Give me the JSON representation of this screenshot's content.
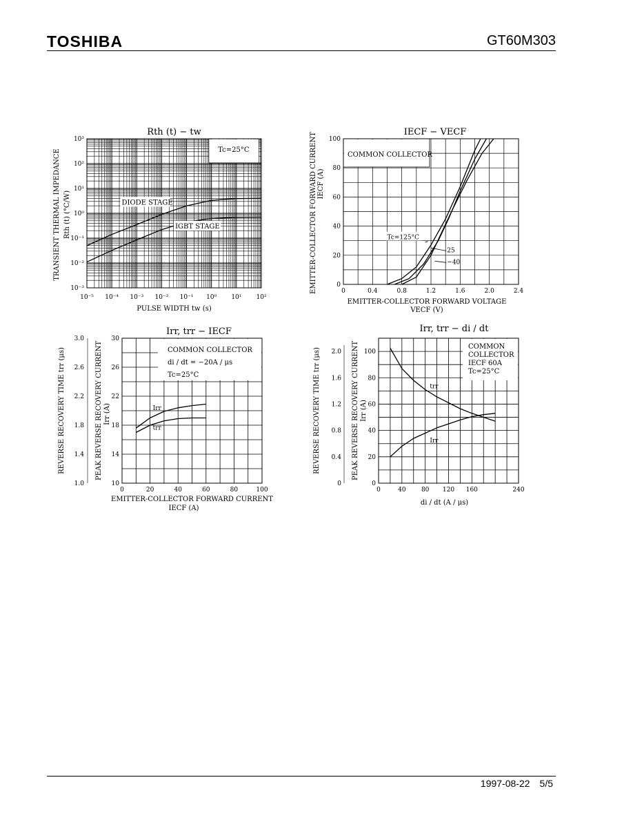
{
  "header": {
    "brand": "TOSHIBA",
    "part_number": "GT60M303"
  },
  "footer": {
    "date": "1997-08-22",
    "page": "5/5"
  },
  "chart_data": [
    {
      "type": "line",
      "id": "rth",
      "title": "Rth (t) − tw",
      "xlabel": "PULSE WIDTH  tw  (s)",
      "ylabel": "TRANSIENT THERMAL IMPEDANCE",
      "ylabel2": "Rth (t)  (°C/W)",
      "xscale": "log",
      "yscale": "log",
      "xlim": [
        1e-05,
        100
      ],
      "ylim": [
        0.001,
        1000
      ],
      "xticks": [
        1e-05,
        0.0001,
        0.001,
        0.01,
        0.1,
        1,
        10,
        100
      ],
      "xticklabels": [
        "10⁻⁵",
        "10⁻⁴",
        "10⁻³",
        "10⁻²",
        "10⁻¹",
        "10⁰",
        "10¹",
        "10²"
      ],
      "yticks": [
        0.001,
        0.01,
        0.1,
        1,
        10,
        100,
        1000
      ],
      "yticklabels": [
        "10⁻³",
        "10⁻²",
        "10⁻¹",
        "10⁰",
        "10¹",
        "10²",
        "10³"
      ],
      "annotation": "Tc=25°C",
      "series": [
        {
          "name": "DIODE STAGE",
          "x": [
            1e-05,
            0.0001,
            0.001,
            0.01,
            0.1,
            1,
            10,
            100
          ],
          "y": [
            0.05,
            0.14,
            0.35,
            0.9,
            2.0,
            3.3,
            3.9,
            4.0
          ]
        },
        {
          "name": "IGBT STAGE",
          "x": [
            1e-05,
            0.0001,
            0.001,
            0.01,
            0.1,
            1,
            10,
            100
          ],
          "y": [
            0.011,
            0.032,
            0.085,
            0.22,
            0.45,
            0.62,
            0.68,
            0.7
          ]
        }
      ]
    },
    {
      "type": "line",
      "id": "iecf",
      "title": "IECF − VECF",
      "xlabel": "EMITTER-COLLECTOR FORWARD VOLTAGE",
      "xlabel2": "VECF  (V)",
      "ylabel": "EMITTER-COLLECTOR FORWARD CURRENT",
      "ylabel2": "IECF  (A)",
      "xlim": [
        0,
        2.4
      ],
      "ylim": [
        0,
        100
      ],
      "xticks": [
        0,
        0.4,
        0.8,
        1.2,
        1.6,
        2.0,
        2.4
      ],
      "xticklabels": [
        "0",
        "0.4",
        "0.8",
        "1.2",
        "1.6",
        "2.0",
        "2.4"
      ],
      "yticks": [
        0,
        20,
        40,
        60,
        80,
        100
      ],
      "annotation": "COMMON COLLECTOR",
      "series": [
        {
          "name": "Tc=125°C",
          "x": [
            0.6,
            0.8,
            1.0,
            1.2,
            1.4,
            1.6,
            1.8,
            1.88
          ],
          "y": [
            0,
            4,
            12,
            27,
            45,
            67,
            92,
            100
          ]
        },
        {
          "name": "25",
          "x": [
            0.7,
            0.9,
            1.1,
            1.3,
            1.45,
            1.6,
            1.8,
            1.96
          ],
          "y": [
            0,
            4,
            14,
            30,
            46,
            64,
            86,
            100
          ]
        },
        {
          "name": "−40",
          "x": [
            0.8,
            1.0,
            1.2,
            1.35,
            1.5,
            1.7,
            1.9,
            2.06
          ],
          "y": [
            0,
            5,
            20,
            36,
            52,
            72,
            90,
            100
          ]
        }
      ]
    },
    {
      "type": "line",
      "id": "irr_iecf",
      "title": "Irr, trr − IECF",
      "xlabel": "EMITTER-COLLECTOR FORWARD CURRENT",
      "xlabel2": "IECF  (A)",
      "ylabel_left": "REVERSE RECOVERY TIME  trr  (μs)",
      "ylabel_right": "PEAK REVERSE RECOVERY CURRENT",
      "ylabel_right2": "Irr  (A)",
      "xlim": [
        0,
        100
      ],
      "ylim_left": [
        1.0,
        3.0
      ],
      "ylim_right": [
        10,
        30
      ],
      "xticks": [
        0,
        20,
        40,
        60,
        80,
        100
      ],
      "yticks_left": [
        "1.0",
        "1.4",
        "1.8",
        "2.2",
        "2.6",
        "3.0"
      ],
      "yticks_right": [
        "10",
        "14",
        "18",
        "22",
        "26",
        "30"
      ],
      "annotations": [
        "COMMON COLLECTOR",
        "di / dt = −20A / μs",
        "Tc=25°C"
      ],
      "series": [
        {
          "name": "Irr",
          "axis": "right",
          "x": [
            10,
            20,
            30,
            40,
            50,
            60
          ],
          "y": [
            17.6,
            19.0,
            19.9,
            20.4,
            20.7,
            20.9
          ]
        },
        {
          "name": "trr",
          "axis": "left",
          "x": [
            10,
            20,
            30,
            40,
            50,
            60
          ],
          "y": [
            1.7,
            1.8,
            1.86,
            1.89,
            1.9,
            1.9
          ]
        }
      ]
    },
    {
      "type": "line",
      "id": "irr_didt",
      "title": "Irr, trr − di / dt",
      "xlabel": "di / dt   (A / μs)",
      "ylabel_left": "REVERSE RECOVERY TIME  trr  (μs)",
      "ylabel_right": "PEAK REVERSE RECOVERY CURRENT",
      "ylabel_right2": "Irr  (A)",
      "xlim": [
        0,
        240
      ],
      "ylim_left": [
        0,
        2.2
      ],
      "ylim_right": [
        0,
        110
      ],
      "xticks": [
        0,
        40,
        80,
        120,
        160,
        240
      ],
      "yticks_left": [
        "0",
        "0.4",
        "0.8",
        "1.2",
        "1.6",
        "2.0"
      ],
      "yticks_right": [
        "0",
        "20",
        "40",
        "60",
        "80",
        "100"
      ],
      "annotations": [
        "COMMON",
        "COLLECTOR",
        "IECF  60A",
        "Tc=25°C"
      ],
      "series": [
        {
          "name": "trr",
          "axis": "left",
          "x": [
            20,
            40,
            60,
            80,
            100,
            120,
            140,
            160,
            180,
            200
          ],
          "y": [
            2.05,
            1.74,
            1.56,
            1.42,
            1.31,
            1.22,
            1.13,
            1.06,
            1.0,
            0.94
          ]
        },
        {
          "name": "Irr",
          "axis": "right",
          "x": [
            20,
            40,
            60,
            80,
            100,
            120,
            140,
            160,
            180,
            200
          ],
          "y": [
            20,
            28,
            34,
            38,
            42,
            45,
            48,
            50.5,
            52,
            53
          ]
        }
      ]
    }
  ]
}
